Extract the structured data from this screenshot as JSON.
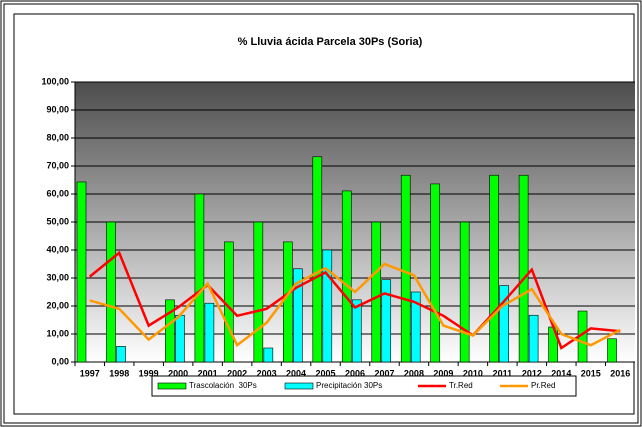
{
  "chart_data": {
    "type": "bar",
    "title": "% Lluvia ácida Parcela 30Ps (Soria)",
    "categories": [
      "1997",
      "1998",
      "1999",
      "2000",
      "2001",
      "2002",
      "2003",
      "2004",
      "2005",
      "2006",
      "2007",
      "2008",
      "2009",
      "2010",
      "2011",
      "2012",
      "2014",
      "2015",
      "2016"
    ],
    "series": [
      {
        "name": "Trascolación  30Ps",
        "type": "bar",
        "color": "#00ff00",
        "values": [
          64.3,
          50,
          0,
          22.2,
          60,
          42.9,
          50,
          42.9,
          73.3,
          61.1,
          50,
          66.7,
          63.6,
          50,
          66.7,
          66.7,
          12.5,
          18.2,
          8.3
        ]
      },
      {
        "name": "Precipitación 30Ps",
        "type": "bar",
        "color": "#00ffff",
        "values": [
          0,
          5.6,
          0,
          16.7,
          21,
          0,
          5,
          33.3,
          40,
          22.2,
          29.4,
          25,
          0,
          0,
          27.3,
          16.7,
          0,
          0,
          0
        ]
      },
      {
        "name": "Tr.Red",
        "type": "line",
        "color": "#ff0000",
        "values": [
          30.5,
          39,
          13,
          19.5,
          27.5,
          16.5,
          19,
          26.5,
          32,
          19.5,
          24.5,
          21.5,
          16.5,
          9.5,
          21,
          33,
          5,
          12,
          11
        ]
      },
      {
        "name": "Pr.Red",
        "type": "line",
        "color": "#ff9900",
        "values": [
          22,
          19,
          8,
          16,
          28,
          6,
          14,
          28,
          33.5,
          25,
          35,
          31,
          13,
          9.5,
          20,
          26,
          10,
          6,
          11.5
        ]
      }
    ],
    "ylim": [
      0,
      100
    ],
    "yticks": [
      {
        "value": 0,
        "label": "0,00"
      },
      {
        "value": 10,
        "label": "10,00"
      },
      {
        "value": 20,
        "label": "20,00"
      },
      {
        "value": 30,
        "label": "30,00"
      },
      {
        "value": 40,
        "label": "40,00"
      },
      {
        "value": 50,
        "label": "50,00"
      },
      {
        "value": 60,
        "label": "60,00"
      },
      {
        "value": 70,
        "label": "70,00"
      },
      {
        "value": 80,
        "label": "80,00"
      },
      {
        "value": 90,
        "label": "90,00"
      },
      {
        "value": 100,
        "label": "100,00"
      }
    ],
    "grid": true
  }
}
